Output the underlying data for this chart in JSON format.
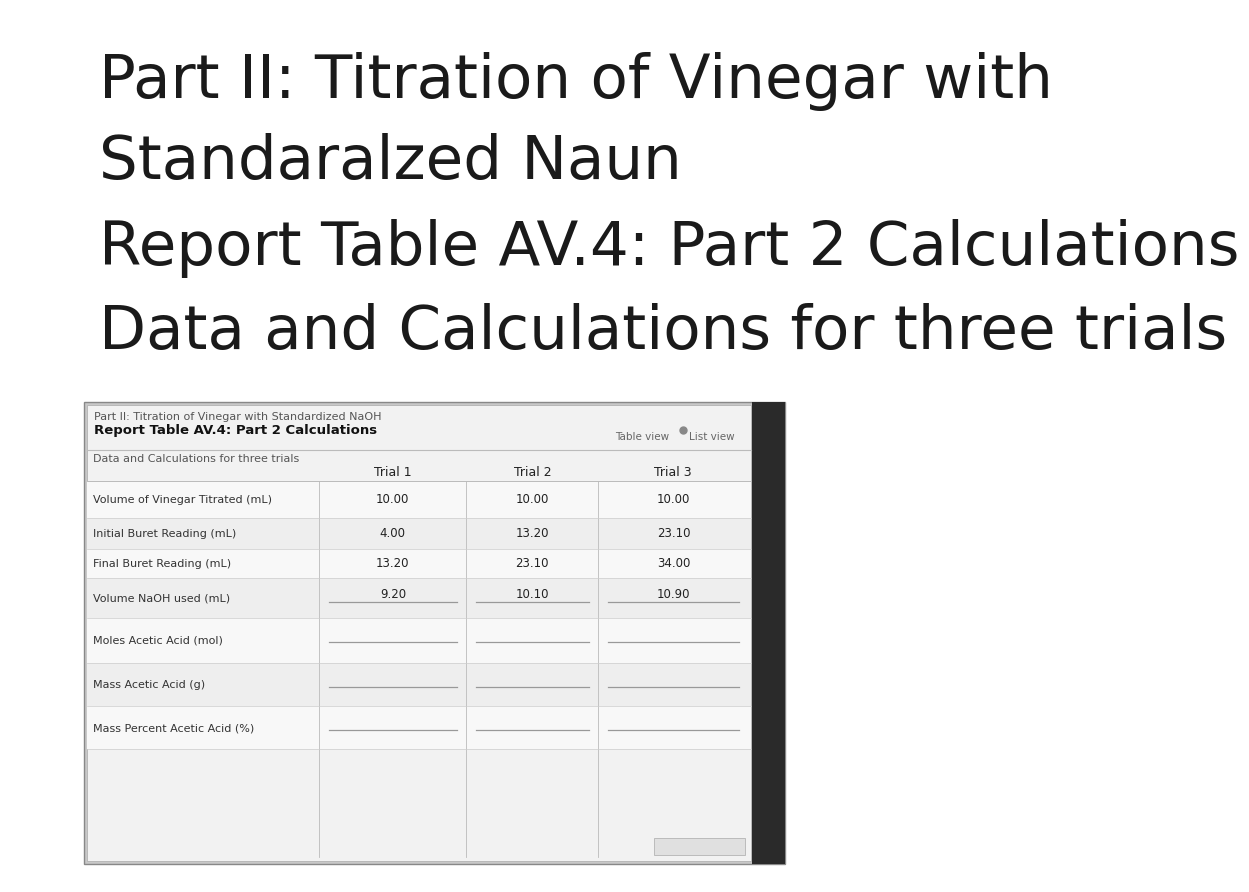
{
  "title_line1": "Part II: Titration of Vinegar with",
  "title_line2": "Standaralzed Naun",
  "title_line3": "Report Table AV.4: Part 2 Calculations",
  "title_line4": "Data and Calculations for three trials",
  "screenshot_header1": "Part II: Titration of Vinegar with Standardized NaOH",
  "screenshot_header2": "Report Table AV.4: Part 2 Calculations",
  "screenshot_subheader": "Data and Calculations for three trials",
  "table_view_label": "Table view",
  "list_view_label": "List view",
  "col_headers": [
    "Trial 1",
    "Trial 2",
    "Trial 3"
  ],
  "row_labels": [
    "Volume of Vinegar Titrated (mL)",
    "Initial Buret Reading (mL)",
    "Final Buret Reading (mL)",
    "Volume NaOH used (mL)",
    "Moles Acetic Acid (mol)",
    "Mass Acetic Acid (g)",
    "Mass Percent Acetic Acid (%)"
  ],
  "trial1_values": [
    "10.00",
    "4.00",
    "13.20",
    "9.20",
    "",
    "",
    ""
  ],
  "trial2_values": [
    "10.00",
    "13.20",
    "23.10",
    "10.10",
    "",
    "",
    ""
  ],
  "trial3_values": [
    "10.00",
    "23.10",
    "34.00",
    "10.90",
    "",
    "",
    ""
  ],
  "bg_color": "#ffffff",
  "title_color": "#1a1a1a",
  "screenshot_outer_bg": "#c8c8c8",
  "screenshot_inner_bg": "#f2f2f2",
  "dark_edge_color": "#2a2a2a",
  "separator_color": "#bbbbbb",
  "row_color_even": "#f8f8f8",
  "row_color_odd": "#eeeeee",
  "border_color": "#aaaaaa",
  "text_color": "#222222",
  "label_color": "#333333",
  "subheader_color": "#555555",
  "input_line_color": "#999999"
}
